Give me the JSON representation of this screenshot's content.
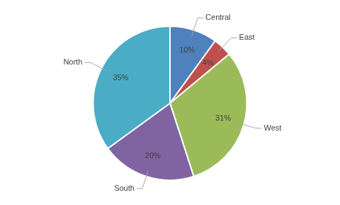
{
  "chart_data": {
    "type": "pie",
    "categories": [
      "Central",
      "East",
      "West",
      "South",
      "North"
    ],
    "values": [
      10,
      4,
      31,
      20,
      35
    ],
    "value_labels": [
      "10%",
      "4%",
      "31%",
      "20%",
      "35%"
    ],
    "colors": [
      "#4f81bd",
      "#c0504d",
      "#9bbb59",
      "#8064a2",
      "#4bacc6"
    ],
    "data_labels": true
  }
}
